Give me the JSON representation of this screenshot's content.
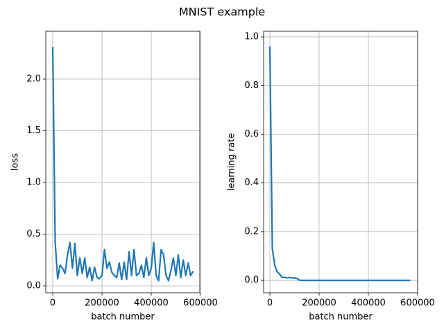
{
  "title": "MNIST example",
  "chart_data": [
    {
      "type": "line",
      "xlabel": "batch number",
      "ylabel": "loss",
      "color": "#1f77b4",
      "grid": true,
      "x": [
        0,
        10000,
        20000,
        30000,
        40000,
        50000,
        60000,
        70000,
        80000,
        90000,
        100000,
        110000,
        120000,
        130000,
        140000,
        150000,
        160000,
        170000,
        180000,
        190000,
        200000,
        210000,
        220000,
        230000,
        240000,
        250000,
        260000,
        270000,
        280000,
        290000,
        300000,
        310000,
        320000,
        330000,
        340000,
        350000,
        360000,
        370000,
        380000,
        390000,
        400000,
        410000,
        420000,
        430000,
        440000,
        450000,
        460000,
        470000,
        480000,
        490000,
        500000,
        510000,
        520000,
        530000,
        540000,
        550000,
        560000,
        570000
      ],
      "values": [
        2.31,
        0.42,
        0.07,
        0.2,
        0.17,
        0.12,
        0.3,
        0.42,
        0.17,
        0.41,
        0.1,
        0.27,
        0.12,
        0.27,
        0.08,
        0.18,
        0.05,
        0.18,
        0.08,
        0.07,
        0.1,
        0.35,
        0.17,
        0.23,
        0.13,
        0.1,
        0.08,
        0.22,
        0.06,
        0.23,
        0.06,
        0.33,
        0.1,
        0.35,
        0.1,
        0.12,
        0.2,
        0.08,
        0.27,
        0.1,
        0.17,
        0.42,
        0.1,
        0.05,
        0.35,
        0.3,
        0.1,
        0.05,
        0.15,
        0.27,
        0.1,
        0.3,
        0.08,
        0.25,
        0.1,
        0.22,
        0.1,
        0.14
      ],
      "xlim": [
        -28169,
        597183
      ],
      "ylim": [
        -0.067,
        2.463
      ],
      "xticks": [
        0,
        200000,
        400000,
        600000
      ],
      "yticks": [
        {
          "value": 0,
          "label": "0.0"
        },
        0.5,
        {
          "value": 1,
          "label": "1.0"
        },
        1.5,
        {
          "value": 2,
          "label": "2.0"
        }
      ]
    },
    {
      "type": "line",
      "xlabel": "batch number",
      "ylabel": "learning rate",
      "color": "#1f77b4",
      "grid": true,
      "x": [
        0,
        10000,
        20000,
        30000,
        40000,
        50000,
        60000,
        70000,
        80000,
        90000,
        100000,
        110000,
        120000,
        130000,
        140000,
        150000,
        160000,
        170000,
        180000,
        190000,
        200000,
        210000,
        220000,
        230000,
        240000,
        250000,
        260000,
        270000,
        280000,
        290000,
        300000,
        310000,
        320000,
        330000,
        340000,
        350000,
        360000,
        370000,
        380000,
        390000,
        400000,
        410000,
        420000,
        430000,
        440000,
        450000,
        460000,
        470000,
        480000,
        490000,
        500000,
        510000,
        520000,
        530000,
        540000,
        550000,
        560000,
        570000
      ],
      "values": [
        0.96,
        0.13,
        0.06,
        0.035,
        0.025,
        0.012,
        0.012,
        0.01,
        0.012,
        0.01,
        0.01,
        0.008,
        0.001,
        0,
        0,
        0,
        0,
        0,
        0,
        0,
        0,
        0,
        0,
        0,
        0,
        0,
        0,
        0,
        0,
        0,
        0,
        0,
        0,
        0,
        0,
        0,
        0,
        0,
        0,
        0,
        0,
        0,
        0,
        0,
        0,
        0,
        0,
        0,
        0,
        0,
        0,
        0,
        0,
        0,
        0,
        0,
        0,
        0
      ],
      "xlim": [
        -25352,
        600000
      ],
      "ylim": [
        -0.051,
        1.023
      ],
      "xticks": [
        0,
        200000,
        400000,
        600000
      ],
      "yticks": [
        {
          "value": 0,
          "label": "0.0"
        },
        0.2,
        0.4,
        0.6,
        0.8,
        {
          "value": 1,
          "label": "1.0"
        }
      ]
    }
  ]
}
